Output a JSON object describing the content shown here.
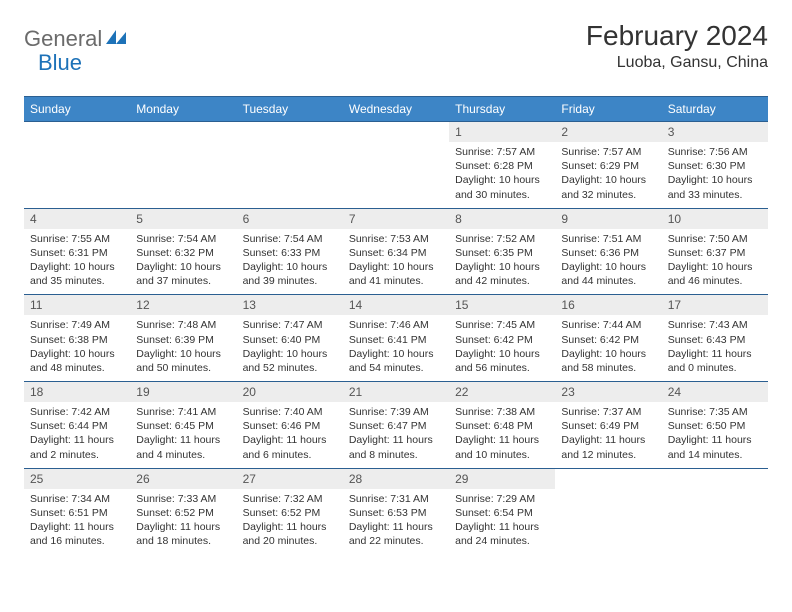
{
  "logo": {
    "part1": "General",
    "part2": "Blue"
  },
  "title": "February 2024",
  "location": "Luoba, Gansu, China",
  "colors": {
    "header_bg": "#3d85c6",
    "header_border": "#2b5f91",
    "daynum_bg": "#ededed",
    "text": "#333333",
    "logo_gray": "#6b6b6b",
    "logo_blue": "#1d72b8"
  },
  "day_headers": [
    "Sunday",
    "Monday",
    "Tuesday",
    "Wednesday",
    "Thursday",
    "Friday",
    "Saturday"
  ],
  "weeks": [
    [
      null,
      null,
      null,
      null,
      {
        "d": "1",
        "sr": "Sunrise: 7:57 AM",
        "ss": "Sunset: 6:28 PM",
        "dl1": "Daylight: 10 hours",
        "dl2": "and 30 minutes."
      },
      {
        "d": "2",
        "sr": "Sunrise: 7:57 AM",
        "ss": "Sunset: 6:29 PM",
        "dl1": "Daylight: 10 hours",
        "dl2": "and 32 minutes."
      },
      {
        "d": "3",
        "sr": "Sunrise: 7:56 AM",
        "ss": "Sunset: 6:30 PM",
        "dl1": "Daylight: 10 hours",
        "dl2": "and 33 minutes."
      }
    ],
    [
      {
        "d": "4",
        "sr": "Sunrise: 7:55 AM",
        "ss": "Sunset: 6:31 PM",
        "dl1": "Daylight: 10 hours",
        "dl2": "and 35 minutes."
      },
      {
        "d": "5",
        "sr": "Sunrise: 7:54 AM",
        "ss": "Sunset: 6:32 PM",
        "dl1": "Daylight: 10 hours",
        "dl2": "and 37 minutes."
      },
      {
        "d": "6",
        "sr": "Sunrise: 7:54 AM",
        "ss": "Sunset: 6:33 PM",
        "dl1": "Daylight: 10 hours",
        "dl2": "and 39 minutes."
      },
      {
        "d": "7",
        "sr": "Sunrise: 7:53 AM",
        "ss": "Sunset: 6:34 PM",
        "dl1": "Daylight: 10 hours",
        "dl2": "and 41 minutes."
      },
      {
        "d": "8",
        "sr": "Sunrise: 7:52 AM",
        "ss": "Sunset: 6:35 PM",
        "dl1": "Daylight: 10 hours",
        "dl2": "and 42 minutes."
      },
      {
        "d": "9",
        "sr": "Sunrise: 7:51 AM",
        "ss": "Sunset: 6:36 PM",
        "dl1": "Daylight: 10 hours",
        "dl2": "and 44 minutes."
      },
      {
        "d": "10",
        "sr": "Sunrise: 7:50 AM",
        "ss": "Sunset: 6:37 PM",
        "dl1": "Daylight: 10 hours",
        "dl2": "and 46 minutes."
      }
    ],
    [
      {
        "d": "11",
        "sr": "Sunrise: 7:49 AM",
        "ss": "Sunset: 6:38 PM",
        "dl1": "Daylight: 10 hours",
        "dl2": "and 48 minutes."
      },
      {
        "d": "12",
        "sr": "Sunrise: 7:48 AM",
        "ss": "Sunset: 6:39 PM",
        "dl1": "Daylight: 10 hours",
        "dl2": "and 50 minutes."
      },
      {
        "d": "13",
        "sr": "Sunrise: 7:47 AM",
        "ss": "Sunset: 6:40 PM",
        "dl1": "Daylight: 10 hours",
        "dl2": "and 52 minutes."
      },
      {
        "d": "14",
        "sr": "Sunrise: 7:46 AM",
        "ss": "Sunset: 6:41 PM",
        "dl1": "Daylight: 10 hours",
        "dl2": "and 54 minutes."
      },
      {
        "d": "15",
        "sr": "Sunrise: 7:45 AM",
        "ss": "Sunset: 6:42 PM",
        "dl1": "Daylight: 10 hours",
        "dl2": "and 56 minutes."
      },
      {
        "d": "16",
        "sr": "Sunrise: 7:44 AM",
        "ss": "Sunset: 6:42 PM",
        "dl1": "Daylight: 10 hours",
        "dl2": "and 58 minutes."
      },
      {
        "d": "17",
        "sr": "Sunrise: 7:43 AM",
        "ss": "Sunset: 6:43 PM",
        "dl1": "Daylight: 11 hours",
        "dl2": "and 0 minutes."
      }
    ],
    [
      {
        "d": "18",
        "sr": "Sunrise: 7:42 AM",
        "ss": "Sunset: 6:44 PM",
        "dl1": "Daylight: 11 hours",
        "dl2": "and 2 minutes."
      },
      {
        "d": "19",
        "sr": "Sunrise: 7:41 AM",
        "ss": "Sunset: 6:45 PM",
        "dl1": "Daylight: 11 hours",
        "dl2": "and 4 minutes."
      },
      {
        "d": "20",
        "sr": "Sunrise: 7:40 AM",
        "ss": "Sunset: 6:46 PM",
        "dl1": "Daylight: 11 hours",
        "dl2": "and 6 minutes."
      },
      {
        "d": "21",
        "sr": "Sunrise: 7:39 AM",
        "ss": "Sunset: 6:47 PM",
        "dl1": "Daylight: 11 hours",
        "dl2": "and 8 minutes."
      },
      {
        "d": "22",
        "sr": "Sunrise: 7:38 AM",
        "ss": "Sunset: 6:48 PM",
        "dl1": "Daylight: 11 hours",
        "dl2": "and 10 minutes."
      },
      {
        "d": "23",
        "sr": "Sunrise: 7:37 AM",
        "ss": "Sunset: 6:49 PM",
        "dl1": "Daylight: 11 hours",
        "dl2": "and 12 minutes."
      },
      {
        "d": "24",
        "sr": "Sunrise: 7:35 AM",
        "ss": "Sunset: 6:50 PM",
        "dl1": "Daylight: 11 hours",
        "dl2": "and 14 minutes."
      }
    ],
    [
      {
        "d": "25",
        "sr": "Sunrise: 7:34 AM",
        "ss": "Sunset: 6:51 PM",
        "dl1": "Daylight: 11 hours",
        "dl2": "and 16 minutes."
      },
      {
        "d": "26",
        "sr": "Sunrise: 7:33 AM",
        "ss": "Sunset: 6:52 PM",
        "dl1": "Daylight: 11 hours",
        "dl2": "and 18 minutes."
      },
      {
        "d": "27",
        "sr": "Sunrise: 7:32 AM",
        "ss": "Sunset: 6:52 PM",
        "dl1": "Daylight: 11 hours",
        "dl2": "and 20 minutes."
      },
      {
        "d": "28",
        "sr": "Sunrise: 7:31 AM",
        "ss": "Sunset: 6:53 PM",
        "dl1": "Daylight: 11 hours",
        "dl2": "and 22 minutes."
      },
      {
        "d": "29",
        "sr": "Sunrise: 7:29 AM",
        "ss": "Sunset: 6:54 PM",
        "dl1": "Daylight: 11 hours",
        "dl2": "and 24 minutes."
      },
      null,
      null
    ]
  ]
}
